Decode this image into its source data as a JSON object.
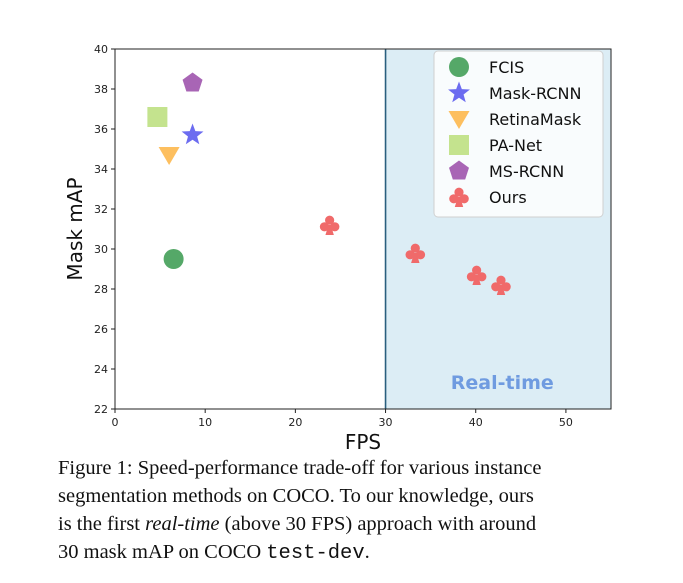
{
  "chart_data": {
    "type": "scatter",
    "xlabel": "FPS",
    "ylabel": "Mask mAP",
    "xlim": [
      0,
      55
    ],
    "ylim": [
      22,
      40
    ],
    "xticks": [
      0,
      10,
      20,
      30,
      40,
      50
    ],
    "yticks": [
      22,
      24,
      26,
      28,
      30,
      32,
      34,
      36,
      38,
      40
    ],
    "grid": false,
    "legend_position": "top-right",
    "realtime_region": {
      "x_start": 30,
      "label": "Real-time",
      "color": "#dcedf5",
      "line_color": "#2a5f7e"
    },
    "series": [
      {
        "name": "FCIS",
        "marker": "circle",
        "color": "#55a868",
        "points": [
          {
            "x": 6.5,
            "y": 29.5
          }
        ]
      },
      {
        "name": "Mask-RCNN",
        "marker": "star",
        "color": "#6c6cf0",
        "points": [
          {
            "x": 8.6,
            "y": 35.7
          }
        ]
      },
      {
        "name": "RetinaMask",
        "marker": "triangle-down",
        "color": "#fdbf5f",
        "points": [
          {
            "x": 6.0,
            "y": 34.7
          }
        ]
      },
      {
        "name": "PA-Net",
        "marker": "square",
        "color": "#c4e38e",
        "points": [
          {
            "x": 4.7,
            "y": 36.6
          }
        ]
      },
      {
        "name": "MS-RCNN",
        "marker": "pentagon",
        "color": "#a865b5",
        "points": [
          {
            "x": 8.6,
            "y": 38.3
          }
        ]
      },
      {
        "name": "Ours",
        "marker": "club",
        "color": "#f06a6a",
        "points": [
          {
            "x": 23.8,
            "y": 31.2
          },
          {
            "x": 33.3,
            "y": 29.8
          },
          {
            "x": 40.1,
            "y": 28.7
          },
          {
            "x": 42.8,
            "y": 28.2
          }
        ]
      }
    ]
  },
  "caption": {
    "line1": "Figure 1: Speed-performance trade-off for various instance",
    "line2": "segmentation methods on COCO. To our knowledge, ours",
    "line3_a": "is the first ",
    "line3_b": "real-time",
    "line3_c": " (above 30 FPS) approach with around",
    "line4_a": "30 mask mAP on COCO ",
    "line4_b": "test-dev",
    "line4_c": "."
  }
}
